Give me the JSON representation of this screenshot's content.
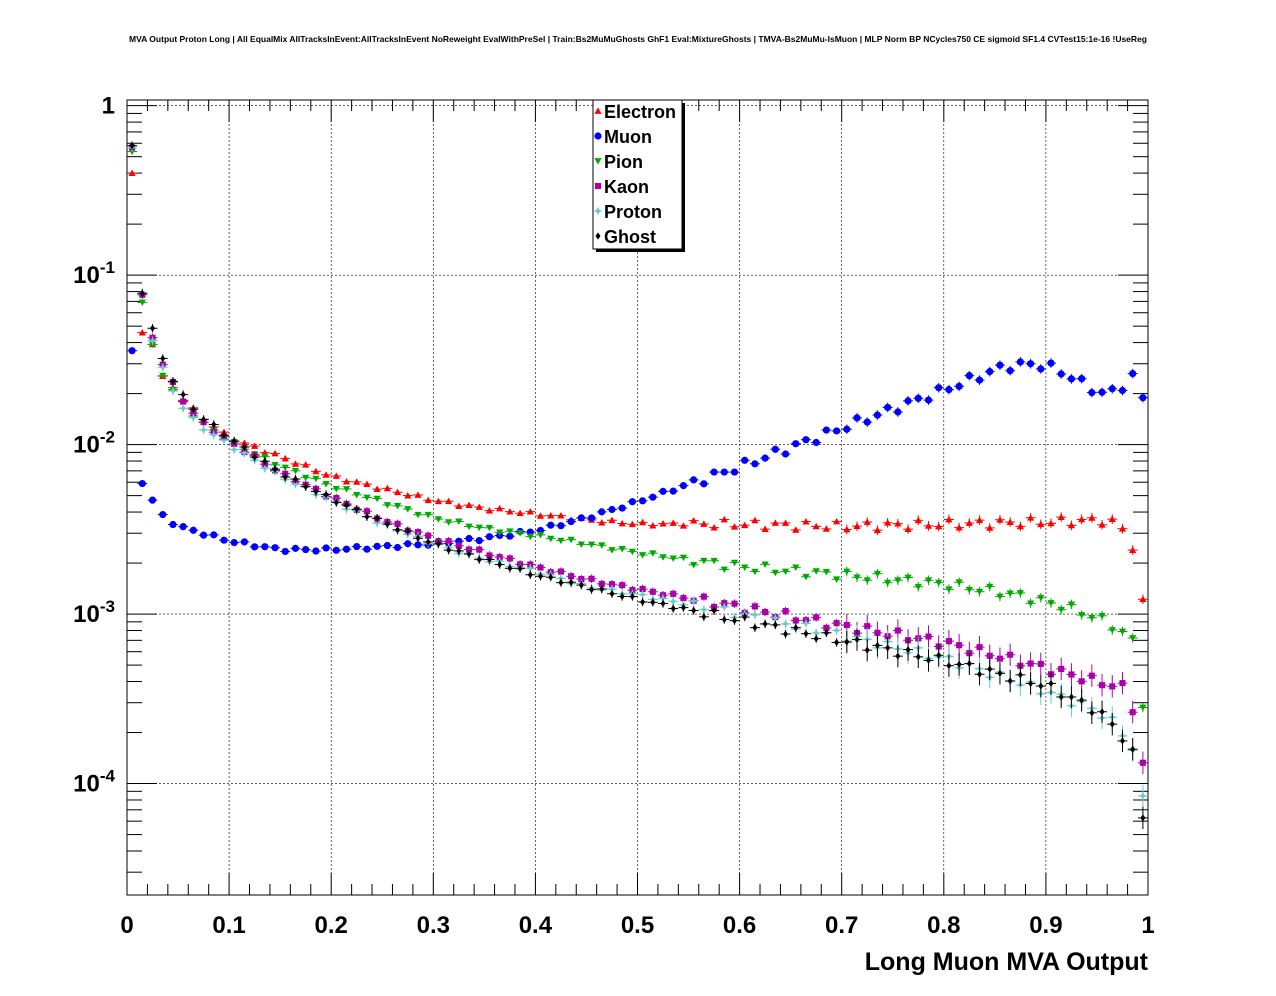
{
  "chart_data": {
    "type": "scatter",
    "title": "MVA Output Proton Long | All EqualMix AllTracksInEvent:AllTracksInEvent NoReweight EvalWithPreSel | Train:Bs2MuMuGhosts GhF1 Eval:MixtureGhosts | TMVA-Bs2MuMu-IsMuon | MLP Norm BP NCycles750 CE sigmoid SF1.4 CVTest15:1e-16 !UseReg",
    "xlabel": "Long Muon MVA Output",
    "ylabel": "",
    "xlim": [
      0,
      1
    ],
    "ylim": [
      2.2e-05,
      1.08
    ],
    "yscale": "log",
    "grid": true,
    "legend_position": "top-center",
    "x_ticks": [
      {
        "value": 0,
        "label": "0"
      },
      {
        "value": 0.1,
        "label": "0.1"
      },
      {
        "value": 0.2,
        "label": "0.2"
      },
      {
        "value": 0.3,
        "label": "0.3"
      },
      {
        "value": 0.4,
        "label": "0.4"
      },
      {
        "value": 0.5,
        "label": "0.5"
      },
      {
        "value": 0.6,
        "label": "0.6"
      },
      {
        "value": 0.7,
        "label": "0.7"
      },
      {
        "value": 0.8,
        "label": "0.8"
      },
      {
        "value": 0.9,
        "label": "0.9"
      },
      {
        "value": 1,
        "label": "1"
      }
    ],
    "y_ticks": [
      {
        "value": 1,
        "base": "1",
        "exp": ""
      },
      {
        "value": 0.1,
        "base": "10",
        "exp": "-1"
      },
      {
        "value": 0.01,
        "base": "10",
        "exp": "-2"
      },
      {
        "value": 0.001,
        "base": "10",
        "exp": "-3"
      },
      {
        "value": 0.0001,
        "base": "10",
        "exp": "-4"
      }
    ],
    "series": [
      {
        "name": "Electron",
        "color": "#ff0000",
        "marker": "triangle-up",
        "keypoints": [
          [
            0.005,
            0.4
          ],
          [
            0.015,
            0.045
          ],
          [
            0.025,
            0.04
          ],
          [
            0.035,
            0.025
          ],
          [
            0.05,
            0.02
          ],
          [
            0.07,
            0.015
          ],
          [
            0.1,
            0.011
          ],
          [
            0.15,
            0.0085
          ],
          [
            0.2,
            0.0065
          ],
          [
            0.25,
            0.0055
          ],
          [
            0.3,
            0.0047
          ],
          [
            0.35,
            0.0042
          ],
          [
            0.4,
            0.0039
          ],
          [
            0.45,
            0.0036
          ],
          [
            0.5,
            0.0034
          ],
          [
            0.6,
            0.0034
          ],
          [
            0.7,
            0.0033
          ],
          [
            0.8,
            0.0034
          ],
          [
            0.9,
            0.0035
          ],
          [
            0.96,
            0.0036
          ],
          [
            0.975,
            0.0032
          ],
          [
            0.985,
            0.0025
          ],
          [
            0.995,
            0.00115
          ]
        ]
      },
      {
        "name": "Muon",
        "color": "#0000ff",
        "marker": "circle",
        "keypoints": [
          [
            0.005,
            0.035
          ],
          [
            0.015,
            0.006
          ],
          [
            0.025,
            0.0047
          ],
          [
            0.035,
            0.0038
          ],
          [
            0.05,
            0.0033
          ],
          [
            0.1,
            0.0027
          ],
          [
            0.15,
            0.0024
          ],
          [
            0.2,
            0.0024
          ],
          [
            0.25,
            0.0025
          ],
          [
            0.3,
            0.0026
          ],
          [
            0.35,
            0.0028
          ],
          [
            0.4,
            0.0031
          ],
          [
            0.45,
            0.0037
          ],
          [
            0.5,
            0.0046
          ],
          [
            0.6,
            0.0074
          ],
          [
            0.7,
            0.0125
          ],
          [
            0.8,
            0.021
          ],
          [
            0.86,
            0.029
          ],
          [
            0.89,
            0.03
          ],
          [
            0.91,
            0.028
          ],
          [
            0.93,
            0.024
          ],
          [
            0.955,
            0.02
          ],
          [
            0.97,
            0.021
          ],
          [
            0.985,
            0.025
          ],
          [
            0.995,
            0.019
          ]
        ]
      },
      {
        "name": "Pion",
        "color": "#00aa00",
        "marker": "triangle-down",
        "keypoints": [
          [
            0.005,
            0.54
          ],
          [
            0.015,
            0.07
          ],
          [
            0.025,
            0.038
          ],
          [
            0.035,
            0.026
          ],
          [
            0.05,
            0.019
          ],
          [
            0.07,
            0.014
          ],
          [
            0.1,
            0.0105
          ],
          [
            0.15,
            0.0075
          ],
          [
            0.2,
            0.0057
          ],
          [
            0.25,
            0.0046
          ],
          [
            0.3,
            0.0037
          ],
          [
            0.35,
            0.0032
          ],
          [
            0.4,
            0.0029
          ],
          [
            0.45,
            0.0026
          ],
          [
            0.5,
            0.0023
          ],
          [
            0.6,
            0.0019
          ],
          [
            0.7,
            0.0017
          ],
          [
            0.8,
            0.0015
          ],
          [
            0.87,
            0.0013
          ],
          [
            0.92,
            0.0011
          ],
          [
            0.96,
            0.0009
          ],
          [
            0.985,
            0.0007
          ],
          [
            0.995,
            0.0003
          ]
        ]
      },
      {
        "name": "Kaon",
        "color": "#aa00aa",
        "marker": "square",
        "keypoints": [
          [
            0.005,
            0.58
          ],
          [
            0.015,
            0.075
          ],
          [
            0.025,
            0.043
          ],
          [
            0.035,
            0.03
          ],
          [
            0.05,
            0.02
          ],
          [
            0.07,
            0.014
          ],
          [
            0.1,
            0.0105
          ],
          [
            0.15,
            0.0068
          ],
          [
            0.2,
            0.0049
          ],
          [
            0.25,
            0.0036
          ],
          [
            0.3,
            0.0028
          ],
          [
            0.35,
            0.0023
          ],
          [
            0.4,
            0.0019
          ],
          [
            0.45,
            0.0016
          ],
          [
            0.5,
            0.0014
          ],
          [
            0.6,
            0.0011
          ],
          [
            0.7,
            0.00085
          ],
          [
            0.8,
            0.00068
          ],
          [
            0.9,
            0.00048
          ],
          [
            0.95,
            0.0004
          ],
          [
            0.975,
            0.00037
          ],
          [
            0.985,
            0.00028
          ],
          [
            0.995,
            0.00013
          ]
        ]
      },
      {
        "name": "Proton",
        "color": "#66cccc",
        "marker": "star",
        "keypoints": [
          [
            0.005,
            0.56
          ],
          [
            0.015,
            0.078
          ],
          [
            0.025,
            0.042
          ],
          [
            0.035,
            0.028
          ],
          [
            0.05,
            0.018
          ],
          [
            0.07,
            0.013
          ],
          [
            0.1,
            0.01
          ],
          [
            0.15,
            0.0065
          ],
          [
            0.2,
            0.0047
          ],
          [
            0.25,
            0.0034
          ],
          [
            0.3,
            0.0026
          ],
          [
            0.35,
            0.0021
          ],
          [
            0.4,
            0.0018
          ],
          [
            0.45,
            0.00145
          ],
          [
            0.5,
            0.0013
          ],
          [
            0.6,
            0.001
          ],
          [
            0.7,
            0.00075
          ],
          [
            0.8,
            0.00055
          ],
          [
            0.9,
            0.00035
          ],
          [
            0.95,
            0.00027
          ],
          [
            0.97,
            0.00022
          ],
          [
            0.985,
            0.00016
          ],
          [
            0.995,
            8e-05
          ]
        ]
      },
      {
        "name": "Ghost",
        "color": "#000000",
        "marker": "diamond",
        "keypoints": [
          [
            0.005,
            0.57
          ],
          [
            0.015,
            0.08
          ],
          [
            0.025,
            0.048
          ],
          [
            0.035,
            0.032
          ],
          [
            0.05,
            0.021
          ],
          [
            0.07,
            0.015
          ],
          [
            0.1,
            0.011
          ],
          [
            0.15,
            0.0068
          ],
          [
            0.2,
            0.0048
          ],
          [
            0.25,
            0.0035
          ],
          [
            0.3,
            0.0026
          ],
          [
            0.35,
            0.0021
          ],
          [
            0.4,
            0.0017
          ],
          [
            0.45,
            0.00145
          ],
          [
            0.5,
            0.00122
          ],
          [
            0.6,
            0.00092
          ],
          [
            0.7,
            0.0007
          ],
          [
            0.8,
            0.00053
          ],
          [
            0.9,
            0.00038
          ],
          [
            0.95,
            0.00027
          ],
          [
            0.97,
            0.00021
          ],
          [
            0.985,
            0.00015
          ],
          [
            0.995,
            6.5e-05
          ]
        ]
      }
    ]
  }
}
